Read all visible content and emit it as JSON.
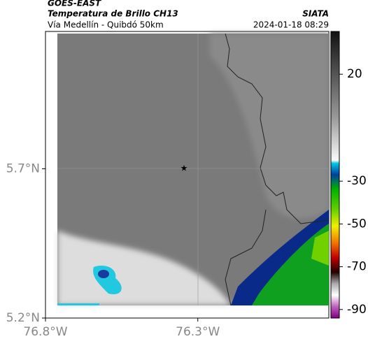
{
  "header": {
    "satellite": "GOES-EAST",
    "product": "Temperatura de Brillo CH13",
    "route": "Vía Medellín - Quibdó 50km",
    "source": "SIATA",
    "datetime": "2024-01-18 08:29"
  },
  "map": {
    "xlim": [
      -76.8,
      -75.87
    ],
    "ylim": [
      5.2,
      6.16
    ],
    "xticks": [
      {
        "value": -76.8,
        "label": "76.8°W"
      },
      {
        "value": -76.3,
        "label": "76.3°W"
      }
    ],
    "yticks": [
      {
        "value": 5.2,
        "label": "5.2°N"
      },
      {
        "value": 5.7,
        "label": "5.7°N"
      }
    ],
    "colorbar": {
      "clim": [
        -94,
        40
      ],
      "ticks": [
        20,
        -30,
        -50,
        -70,
        -90
      ]
    }
  }
}
